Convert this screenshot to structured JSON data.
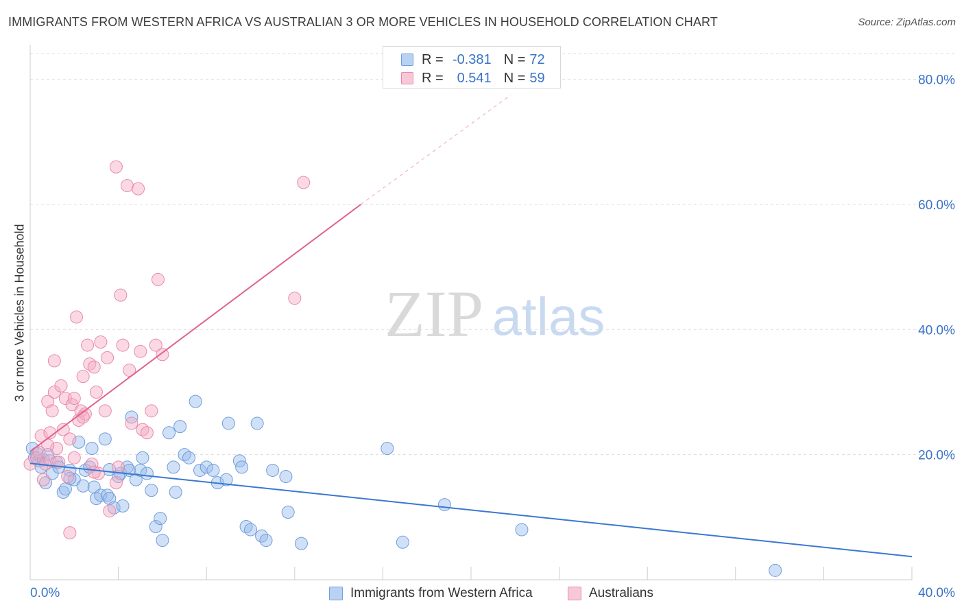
{
  "title": "IMMIGRANTS FROM WESTERN AFRICA VS AUSTRALIAN 3 OR MORE VEHICLES IN HOUSEHOLD CORRELATION CHART",
  "source": "Source: ZipAtlas.com",
  "watermark": {
    "zip": "ZIP",
    "atlas": "atlas"
  },
  "legend_top": [
    {
      "r_label": "R =",
      "r_value": "-0.381",
      "n_label": "N =",
      "n_value": "72"
    },
    {
      "r_label": "R =",
      "r_value": "0.541",
      "n_label": "N =",
      "n_value": "59"
    }
  ],
  "legend_bottom": [
    "Immigrants from Western Africa",
    "Australians"
  ],
  "colors": {
    "blue": "#3a78d1",
    "blue_fill": "#a9c8f0",
    "pink": "#e0628e",
    "pink_fill": "#f6b7ca",
    "grid": "#dddddd",
    "tick_text": "#3a73c8"
  },
  "chart_data": {
    "type": "scatter",
    "title": "IMMIGRANTS FROM WESTERN AFRICA VS AUSTRALIAN 3 OR MORE VEHICLES IN HOUSEHOLD CORRELATION CHART",
    "xlabel": "",
    "ylabel": "3 or more Vehicles in Household",
    "xlim": [
      0,
      40
    ],
    "ylim": [
      0,
      85
    ],
    "x_tick_labels": [
      "0.0%",
      "40.0%"
    ],
    "y_ticks": [
      20,
      40,
      60,
      80
    ],
    "y_tick_labels": [
      "20.0%",
      "40.0%",
      "60.0%",
      "80.0%"
    ],
    "grid": true,
    "legend_position": "top-center",
    "series": [
      {
        "name": "Immigrants from Western Africa",
        "color": "#3a78d1",
        "trend": {
          "x": [
            0.0,
            40.0
          ],
          "y": [
            18.6,
            3.7
          ]
        },
        "points": [
          [
            0.1,
            21.0
          ],
          [
            0.2,
            19.5
          ],
          [
            0.3,
            20.2
          ],
          [
            0.4,
            19.0
          ],
          [
            0.5,
            18.0
          ],
          [
            0.6,
            19.2
          ],
          [
            0.7,
            15.5
          ],
          [
            0.8,
            20.0
          ],
          [
            1.0,
            17.0
          ],
          [
            1.2,
            18.8
          ],
          [
            1.3,
            18.0
          ],
          [
            1.5,
            14.0
          ],
          [
            1.6,
            14.5
          ],
          [
            1.8,
            17.5
          ],
          [
            2.0,
            16.0
          ],
          [
            2.2,
            22.0
          ],
          [
            2.4,
            15.0
          ],
          [
            2.5,
            17.5
          ],
          [
            2.7,
            18.0
          ],
          [
            2.8,
            21.0
          ],
          [
            2.9,
            14.8
          ],
          [
            3.0,
            13.0
          ],
          [
            3.2,
            13.5
          ],
          [
            3.4,
            22.5
          ],
          [
            3.5,
            13.5
          ],
          [
            3.6,
            13.0
          ],
          [
            3.8,
            11.5
          ],
          [
            4.0,
            16.5
          ],
          [
            4.1,
            17.0
          ],
          [
            4.2,
            11.8
          ],
          [
            4.4,
            18.0
          ],
          [
            4.5,
            17.5
          ],
          [
            4.6,
            26.0
          ],
          [
            4.8,
            16.0
          ],
          [
            5.0,
            17.5
          ],
          [
            5.1,
            19.5
          ],
          [
            5.3,
            17.0
          ],
          [
            5.5,
            14.3
          ],
          [
            5.7,
            8.5
          ],
          [
            5.9,
            9.8
          ],
          [
            6.0,
            6.3
          ],
          [
            6.3,
            23.5
          ],
          [
            6.5,
            18.0
          ],
          [
            6.6,
            14.0
          ],
          [
            6.8,
            24.5
          ],
          [
            7.0,
            20.0
          ],
          [
            7.2,
            19.5
          ],
          [
            7.5,
            28.5
          ],
          [
            7.7,
            17.5
          ],
          [
            8.0,
            18.0
          ],
          [
            8.3,
            17.5
          ],
          [
            8.5,
            15.5
          ],
          [
            8.9,
            16.0
          ],
          [
            9.0,
            25.0
          ],
          [
            9.5,
            19.0
          ],
          [
            9.6,
            18.0
          ],
          [
            9.8,
            8.5
          ],
          [
            10.0,
            8.0
          ],
          [
            10.3,
            25.0
          ],
          [
            10.5,
            7.0
          ],
          [
            10.7,
            6.3
          ],
          [
            11.0,
            17.5
          ],
          [
            11.6,
            16.5
          ],
          [
            11.7,
            10.8
          ],
          [
            12.3,
            5.8
          ],
          [
            16.2,
            21.0
          ],
          [
            16.9,
            6.0
          ],
          [
            18.8,
            12.0
          ],
          [
            22.3,
            8.0
          ],
          [
            33.8,
            1.5
          ],
          [
            1.8,
            16.2
          ],
          [
            3.6,
            17.6
          ]
        ]
      },
      {
        "name": "Australians",
        "color": "#e0628e",
        "trend": {
          "x": [
            0.0,
            15.0
          ],
          "y": [
            20.5,
            60.0
          ]
        },
        "trend_dashed": {
          "x": [
            15.0,
            21.8
          ],
          "y": [
            60.0,
            77.5
          ]
        },
        "points": [
          [
            0.0,
            18.5
          ],
          [
            0.3,
            19.5
          ],
          [
            0.5,
            23.0
          ],
          [
            0.6,
            16.0
          ],
          [
            0.7,
            18.5
          ],
          [
            0.8,
            28.5
          ],
          [
            0.9,
            23.5
          ],
          [
            1.0,
            27.0
          ],
          [
            1.1,
            30.0
          ],
          [
            1.2,
            21.0
          ],
          [
            1.4,
            31.0
          ],
          [
            1.5,
            24.0
          ],
          [
            1.6,
            29.0
          ],
          [
            1.7,
            16.5
          ],
          [
            1.8,
            22.5
          ],
          [
            1.9,
            28.0
          ],
          [
            2.0,
            19.5
          ],
          [
            2.1,
            42.0
          ],
          [
            2.2,
            25.5
          ],
          [
            2.3,
            27.0
          ],
          [
            2.4,
            32.5
          ],
          [
            2.5,
            26.5
          ],
          [
            2.6,
            37.5
          ],
          [
            2.7,
            34.5
          ],
          [
            2.8,
            18.5
          ],
          [
            2.9,
            34.0
          ],
          [
            3.0,
            30.0
          ],
          [
            3.1,
            17.0
          ],
          [
            3.2,
            38.0
          ],
          [
            3.4,
            27.0
          ],
          [
            3.5,
            35.5
          ],
          [
            3.6,
            11.0
          ],
          [
            3.9,
            15.5
          ],
          [
            4.1,
            45.5
          ],
          [
            4.2,
            37.5
          ],
          [
            4.4,
            63.0
          ],
          [
            4.5,
            33.5
          ],
          [
            4.6,
            25.0
          ],
          [
            4.9,
            62.5
          ],
          [
            5.0,
            36.5
          ],
          [
            5.1,
            24.0
          ],
          [
            5.3,
            23.5
          ],
          [
            5.5,
            27.0
          ],
          [
            5.7,
            37.5
          ],
          [
            5.8,
            48.0
          ],
          [
            6.0,
            36.0
          ],
          [
            4.0,
            18.0
          ],
          [
            3.9,
            66.0
          ],
          [
            12.4,
            63.5
          ],
          [
            12.0,
            45.0
          ],
          [
            1.8,
            7.5
          ],
          [
            0.8,
            21.5
          ],
          [
            0.9,
            19.0
          ],
          [
            1.1,
            35.0
          ],
          [
            2.0,
            29.0
          ],
          [
            2.9,
            17.2
          ],
          [
            0.4,
            20.4
          ],
          [
            1.3,
            18.8
          ],
          [
            2.4,
            26.0
          ]
        ]
      }
    ]
  }
}
